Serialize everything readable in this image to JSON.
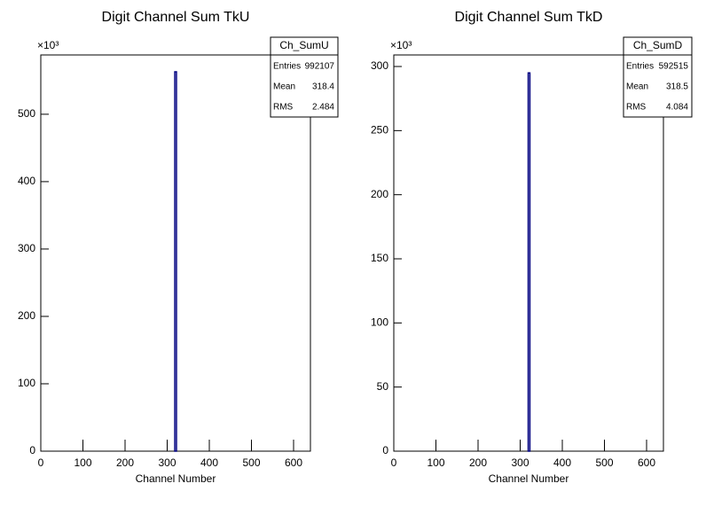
{
  "charts": [
    {
      "chart_data": {
        "type": "histogram",
        "title": "Digit Channel Sum TkU",
        "x_label": "Channel Number",
        "y_multiplier": "×10³",
        "bins": [
          0,
          318,
          322,
          640
        ],
        "values": [
          0,
          563,
          0
        ],
        "color": "#000080",
        "xlim": [
          0,
          640
        ],
        "xticks": [
          0,
          100,
          200,
          300,
          400,
          500,
          600
        ],
        "ylim": [
          0,
          588
        ],
        "yticks": [
          0,
          100,
          200,
          300,
          400,
          500
        ],
        "stats": {
          "title": "Ch_SumU",
          "rows": [
            [
              "Entries",
              992107
            ],
            [
              "Mean",
              318.4
            ],
            [
              "RMS",
              2.484
            ]
          ]
        }
      }
    },
    {
      "chart_data": {
        "type": "histogram",
        "title": "Digit Channel Sum TkD",
        "x_label": "Channel Number",
        "y_multiplier": "×10³",
        "bins": [
          0,
          319,
          323,
          640
        ],
        "values": [
          0,
          295,
          0
        ],
        "color": "#000080",
        "xlim": [
          0,
          640
        ],
        "xticks": [
          0,
          100,
          200,
          300,
          400,
          500,
          600
        ],
        "ylim": [
          0,
          309
        ],
        "yticks": [
          0,
          50,
          100,
          150,
          200,
          250,
          300
        ],
        "stats": {
          "title": "Ch_SumD",
          "rows": [
            [
              "Entries",
              592515
            ],
            [
              "Mean",
              318.5
            ],
            [
              "RMS",
              4.084
            ]
          ]
        }
      }
    }
  ]
}
